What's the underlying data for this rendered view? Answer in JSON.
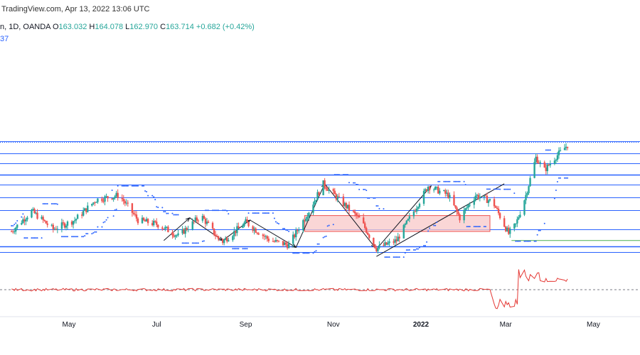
{
  "header": {
    "credit": "TradingView.com, Apr 13, 2022 13:06 UTC",
    "symbol_info": "n, 1D, OANDA",
    "o_label": "O",
    "o_value": "163.032",
    "h_label": "H",
    "h_value": "164.078",
    "l_label": "L",
    "l_value": "162.970",
    "c_label": "C",
    "c_value": "163.714",
    "change": "+0.682 (+0.42%)",
    "psar_value": "37"
  },
  "colors": {
    "up": "#26a69a",
    "down": "#ef5350",
    "sar": "#2962ff",
    "level": "#2962ff",
    "zone_fill": "#f8c8c8",
    "zone_border": "#ef5350",
    "oscillator": "#e53935",
    "support_green": "#4caf50"
  },
  "chart_data": {
    "type": "candlestick",
    "timeframe": "1D",
    "x_ticks": [
      {
        "label": "May",
        "date": "2021-05-01"
      },
      {
        "label": "Jul",
        "date": "2021-07-01"
      },
      {
        "label": "Sep",
        "date": "2021-09-01"
      },
      {
        "label": "Nov",
        "date": "2021-11-01"
      },
      {
        "label": "2022",
        "date": "2022-01-01",
        "bold": true
      },
      {
        "label": "Mar",
        "date": "2022-03-01"
      },
      {
        "label": "May",
        "date": "2022-05-01"
      }
    ],
    "last_close": 163.714,
    "trend_shape": [
      [
        "2021-03-22",
        0.2
      ],
      [
        "2021-04-05",
        0.38
      ],
      [
        "2021-04-20",
        0.22
      ],
      [
        "2021-05-05",
        0.3
      ],
      [
        "2021-05-20",
        0.48
      ],
      [
        "2021-06-05",
        0.52
      ],
      [
        "2021-06-18",
        0.3
      ],
      [
        "2021-07-02",
        0.26
      ],
      [
        "2021-07-16",
        0.16
      ],
      [
        "2021-08-01",
        0.34
      ],
      [
        "2021-08-15",
        0.1
      ],
      [
        "2021-09-01",
        0.28
      ],
      [
        "2021-09-18",
        0.12
      ],
      [
        "2021-10-01",
        0.08
      ],
      [
        "2021-10-15",
        0.38
      ],
      [
        "2021-10-25",
        0.62
      ],
      [
        "2021-11-05",
        0.48
      ],
      [
        "2021-11-20",
        0.3
      ],
      [
        "2021-12-01",
        0.05
      ],
      [
        "2021-12-15",
        0.12
      ],
      [
        "2021-12-28",
        0.4
      ],
      [
        "2022-01-06",
        0.6
      ],
      [
        "2022-01-20",
        0.52
      ],
      [
        "2022-01-28",
        0.32
      ],
      [
        "2022-02-08",
        0.52
      ],
      [
        "2022-02-20",
        0.46
      ],
      [
        "2022-03-03",
        0.18
      ],
      [
        "2022-03-08",
        0.26
      ],
      [
        "2022-03-15",
        0.52
      ],
      [
        "2022-03-22",
        0.85
      ],
      [
        "2022-03-28",
        0.74
      ],
      [
        "2022-04-05",
        0.86
      ],
      [
        "2022-04-13",
        0.96
      ]
    ],
    "horizontal_levels": [
      0.993,
      0.89,
      0.8,
      0.7,
      0.61,
      0.5,
      0.39,
      0.22,
      0.07,
      0.02
    ],
    "supply_zone": {
      "x_start": "2021-10-12",
      "x_end": "2022-02-18",
      "y_top": 0.34,
      "y_bottom": 0.2
    },
    "green_support": {
      "x_start": "2022-03-05",
      "y": 0.12
    },
    "zigzag_arrows": [
      [
        [
          "2021-07-06",
          0.12
        ],
        [
          "2021-07-24",
          0.32
        ]
      ],
      [
        [
          "2021-07-24",
          0.32
        ],
        [
          "2021-08-16",
          0.12
        ]
      ],
      [
        [
          "2021-08-16",
          0.12
        ],
        [
          "2021-09-04",
          0.3
        ]
      ],
      [
        [
          "2021-09-04",
          0.3
        ],
        [
          "2021-10-06",
          0.06
        ]
      ],
      [
        [
          "2021-10-06",
          0.06
        ],
        [
          "2021-10-26",
          0.62
        ]
      ],
      [
        [
          "2021-10-26",
          0.62
        ],
        [
          "2021-11-30",
          0.06
        ]
      ],
      [
        [
          "2021-12-02",
          0.06
        ],
        [
          "2022-01-08",
          0.6
        ]
      ]
    ],
    "trendline": [
      [
        "2021-12-01",
        -0.02
      ],
      [
        "2022-02-28",
        0.62
      ]
    ],
    "oscillator": {
      "zero_level": 0.0
    }
  }
}
